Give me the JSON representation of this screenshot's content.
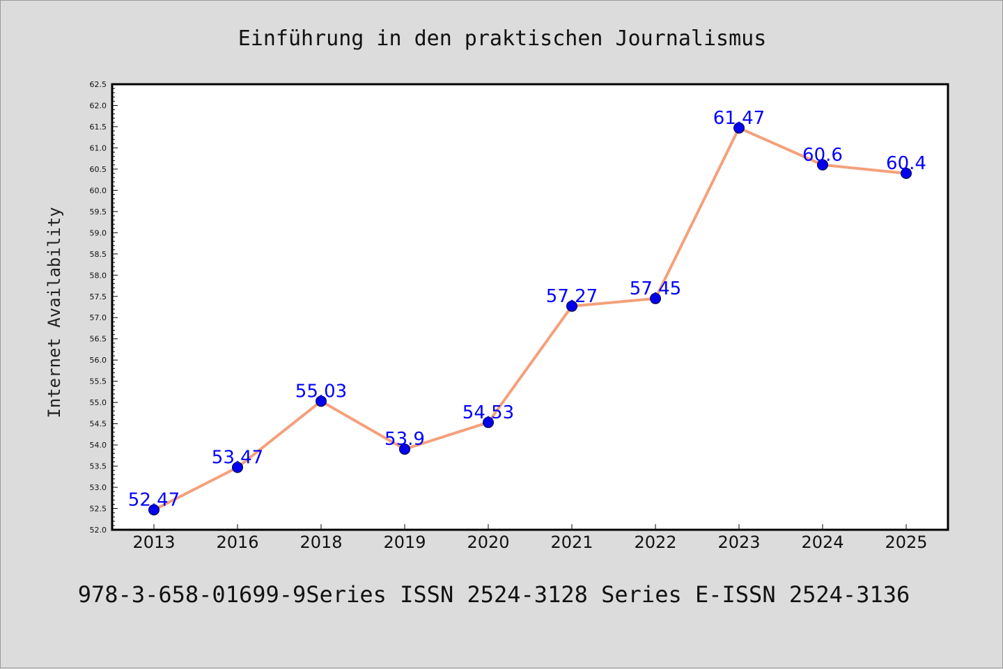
{
  "chart_data": {
    "type": "line",
    "title": "Einführung in den praktischen Journalismus",
    "xlabel": "",
    "ylabel": "Internet Availability",
    "categories": [
      "2013",
      "2016",
      "2018",
      "2019",
      "2020",
      "2021",
      "2022",
      "2023",
      "2024",
      "2025"
    ],
    "values": [
      52.47,
      53.47,
      55.03,
      53.9,
      54.53,
      57.27,
      57.45,
      61.47,
      60.6,
      60.4
    ],
    "data_labels": [
      "52.47",
      "53.47",
      "55.03",
      "53.9",
      "54.53",
      "57.27",
      "57.45",
      "61.47",
      "60.6",
      "60.4"
    ],
    "ylim": [
      52.0,
      62.5
    ],
    "yticks": [
      "52.0",
      "52.5",
      "53.0",
      "53.5",
      "54.0",
      "54.5",
      "55.0",
      "55.5",
      "56.0",
      "56.5",
      "57.0",
      "57.5",
      "58.0",
      "58.5",
      "59.0",
      "59.5",
      "60.0",
      "60.5",
      "61.0",
      "61.5",
      "62.0",
      "62.5"
    ],
    "grid": false,
    "legend": "none",
    "line_color": "#f4a07a",
    "marker_color": "#0000ee",
    "label_color": "#0000ff"
  },
  "footer": "978-3-658-01699-9Series ISSN 2524-3128 Series E-ISSN 2524-3136",
  "colors": {
    "background": "#dcdcdc",
    "plot_background": "#ffffff"
  }
}
